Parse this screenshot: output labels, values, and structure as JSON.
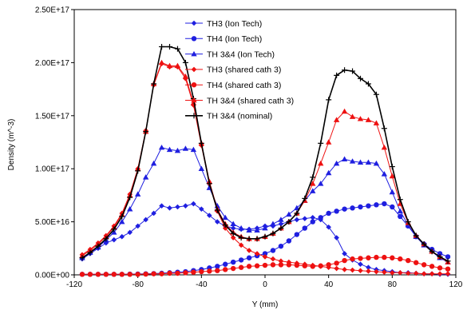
{
  "chart_data": {
    "type": "line",
    "title": "",
    "xlabel": "Y (mm)",
    "ylabel": "Density (m^-3)",
    "xlim": [
      -120,
      120
    ],
    "ylim": [
      0,
      2.5e+17
    ],
    "x_ticks": [
      -120,
      -80,
      -40,
      0,
      40,
      80,
      120
    ],
    "x_tick_labels": [
      "-120",
      "-80",
      "-40",
      "0",
      "40",
      "80",
      "120"
    ],
    "y_ticks": [
      0,
      5e+16,
      1e+17,
      1.5e+17,
      2e+17,
      2.5e+17
    ],
    "y_tick_labels": [
      "0.00E+00",
      "5.00E+16",
      "1.00E+17",
      "1.50E+17",
      "2.00E+17",
      "2.50E+17"
    ],
    "grid": false,
    "legend_position": "top-center",
    "x": [
      -115,
      -110,
      -105,
      -100,
      -95,
      -90,
      -85,
      -80,
      -75,
      -70,
      -65,
      -60,
      -55,
      -50,
      -45,
      -40,
      -35,
      -30,
      -25,
      -20,
      -15,
      -10,
      -5,
      0,
      5,
      10,
      15,
      20,
      25,
      30,
      35,
      40,
      45,
      50,
      55,
      60,
      65,
      70,
      75,
      80,
      85,
      90,
      95,
      100,
      105,
      110,
      115
    ],
    "series": [
      {
        "name": "TH3 (Ion Tech)",
        "color": "#1f1fe0",
        "marker": "diamond",
        "values": [
          1.5e+16,
          2e+16,
          2.5e+16,
          3e+16,
          3.3e+16,
          3.6e+16,
          4e+16,
          4.6e+16,
          5.2e+16,
          5.8e+16,
          6.5e+16,
          6.3e+16,
          6.4e+16,
          6.5e+16,
          6.7e+16,
          6.2e+16,
          5.6e+16,
          5e+16,
          4.6e+16,
          4.4e+16,
          4.3e+16,
          4.3e+16,
          4.4e+16,
          4.6e+16,
          4.6e+16,
          4.8e+16,
          5e+16,
          5.2e+16,
          5.3e+16,
          5.4e+16,
          5.2e+16,
          4.5e+16,
          3.5e+16,
          2e+16,
          1.4e+16,
          1e+16,
          7000000000000000.0,
          5000000000000000.0,
          4000000000000000.0,
          3000000000000000.0,
          2000000000000000.0,
          2000000000000000.0,
          1500000000000000.0,
          1000000000000000.0,
          1000000000000000.0,
          500000000000000.0,
          500000000000000.0
        ]
      },
      {
        "name": "TH4 (Ion Tech)",
        "color": "#1f1fe0",
        "marker": "circle",
        "values": [
          500000000000000.0,
          500000000000000.0,
          500000000000000.0,
          500000000000000.0,
          500000000000000.0,
          500000000000000.0,
          700000000000000.0,
          800000000000000.0,
          1000000000000000.0,
          1200000000000000.0,
          1500000000000000.0,
          2000000000000000.0,
          2500000000000000.0,
          3000000000000000.0,
          4000000000000000.0,
          5000000000000000.0,
          6500000000000000.0,
          8000000000000000.0,
          1e+16,
          1.2e+16,
          1.4e+16,
          1.6e+16,
          1.8e+16,
          2e+16,
          2.3e+16,
          2.7e+16,
          3.2e+16,
          3.8e+16,
          4.4e+16,
          5e+16,
          5.4e+16,
          5.8e+16,
          6e+16,
          6.2e+16,
          6.3e+16,
          6.4e+16,
          6.5e+16,
          6.6e+16,
          6.7e+16,
          6.4e+16,
          5.5e+16,
          4.6e+16,
          3.6e+16,
          2.9e+16,
          2.4e+16,
          2e+16,
          1.7e+16
        ]
      },
      {
        "name": "TH 3&4 (Ion Tech)",
        "color": "#1f1fe0",
        "marker": "triangle",
        "values": [
          1.6e+16,
          2.1e+16,
          2.6e+16,
          3.3e+16,
          4e+16,
          5e+16,
          6.2e+16,
          7.6e+16,
          9.2e+16,
          1.05e+17,
          1.2e+17,
          1.18e+17,
          1.17e+17,
          1.19e+17,
          1.18e+17,
          1e+17,
          8.2e+16,
          6.5e+16,
          5.4e+16,
          4.8e+16,
          4.4e+16,
          4.2e+16,
          4.2e+16,
          4.4e+16,
          4.8e+16,
          5.2e+16,
          5.7e+16,
          6.3e+16,
          7e+16,
          7.9e+16,
          8.6e+16,
          9.6e+16,
          1.05e+17,
          1.09e+17,
          1.07e+17,
          1.06e+17,
          1.06e+17,
          1.05e+17,
          9.5e+16,
          7.8e+16,
          6e+16,
          4.7e+16,
          3.6e+16,
          2.8e+16,
          2.2e+16,
          1.6e+16,
          1.2e+16
        ]
      },
      {
        "name": "TH3 (shared cath 3)",
        "color": "#ee1111",
        "marker": "diamond",
        "values": [
          1.9e+16,
          2.4e+16,
          3e+16,
          3.7e+16,
          4.6e+16,
          5.8e+16,
          7.6e+16,
          1e+17,
          1.36e+17,
          1.79e+17,
          1.99e+17,
          1.96e+17,
          1.96e+17,
          1.85e+17,
          1.6e+17,
          1.22e+17,
          8.6e+16,
          6e+16,
          4.4e+16,
          3.5e+16,
          2.8e+16,
          2.3e+16,
          2e+16,
          1.7e+16,
          1.5e+16,
          1.3e+16,
          1.2e+16,
          1.1e+16,
          1e+16,
          9000000000000000.0,
          8000000000000000.0,
          7000000000000000.0,
          6000000000000000.0,
          5000000000000000.0,
          4500000000000000.0,
          4000000000000000.0,
          3500000000000000.0,
          3000000000000000.0,
          2500000000000000.0,
          2000000000000000.0,
          2000000000000000.0,
          1500000000000000.0,
          1500000000000000.0,
          1000000000000000.0,
          1000000000000000.0,
          1000000000000000.0,
          1000000000000000.0
        ]
      },
      {
        "name": "TH4 (shared cath 3)",
        "color": "#ee1111",
        "marker": "circle",
        "values": [
          500000000000000.0,
          500000000000000.0,
          500000000000000.0,
          500000000000000.0,
          500000000000000.0,
          500000000000000.0,
          500000000000000.0,
          500000000000000.0,
          700000000000000.0,
          1000000000000000.0,
          1000000000000000.0,
          1500000000000000.0,
          1500000000000000.0,
          2000000000000000.0,
          2500000000000000.0,
          3000000000000000.0,
          3500000000000000.0,
          4000000000000000.0,
          5000000000000000.0,
          6000000000000000.0,
          7000000000000000.0,
          8000000000000000.0,
          8500000000000000.0,
          9000000000000000.0,
          9500000000000000.0,
          9500000000000000.0,
          9500000000000000.0,
          9000000000000000.0,
          8500000000000000.0,
          8000000000000000.0,
          8500000000000000.0,
          9500000000000000.0,
          1.1e+16,
          1.35e+16,
          1.5e+16,
          1.55e+16,
          1.6e+16,
          1.65e+16,
          1.65e+16,
          1.6e+16,
          1.5e+16,
          1.35e+16,
          1.15e+16,
          9500000000000000.0,
          8000000000000000.0,
          6500000000000000.0,
          5500000000000000.0
        ]
      },
      {
        "name": "TH 3&4 (shared cath 3)",
        "color": "#ee1111",
        "marker": "triangle",
        "values": [
          1.8e+16,
          2.3e+16,
          2.9e+16,
          3.6e+16,
          4.5e+16,
          5.7e+16,
          7.5e+16,
          1e+17,
          1.35e+17,
          1.8e+17,
          2e+17,
          1.97e+17,
          1.97e+17,
          1.87e+17,
          1.62e+17,
          1.24e+17,
          8.8e+16,
          6.2e+16,
          4.8e+16,
          4e+16,
          3.6e+16,
          3.4e+16,
          3.4e+16,
          3.6e+16,
          3.9e+16,
          4.4e+16,
          5e+16,
          5.8e+16,
          7e+16,
          8.6e+16,
          1.05e+17,
          1.25e+17,
          1.46e+17,
          1.54e+17,
          1.49e+17,
          1.47e+17,
          1.46e+17,
          1.43e+17,
          1.2e+17,
          9.3e+16,
          6.7e+16,
          4.9e+16,
          3.7e+16,
          2.9e+16,
          2.2e+16,
          1.7e+16,
          1.2e+16
        ]
      },
      {
        "name": "TH 3&4 (nominal)",
        "color": "#000000",
        "marker": "plus",
        "values": [
          1.6e+16,
          2.1e+16,
          2.7e+16,
          3.4e+16,
          4.3e+16,
          5.5e+16,
          7.3e+16,
          9.8e+16,
          1.35e+17,
          1.8e+17,
          2.15e+17,
          2.15e+17,
          2.13e+17,
          2e+17,
          1.66e+17,
          1.24e+17,
          8.6e+16,
          6.1e+16,
          4.7e+16,
          3.9e+16,
          3.5e+16,
          3.4e+16,
          3.4e+16,
          3.6e+16,
          3.9e+16,
          4.4e+16,
          5e+16,
          5.8e+16,
          7.2e+16,
          9.2e+16,
          1.24e+17,
          1.65e+17,
          1.88e+17,
          1.93e+17,
          1.92e+17,
          1.85e+17,
          1.8e+17,
          1.7e+17,
          1.38e+17,
          1.02e+17,
          7.1e+16,
          5e+16,
          3.7e+16,
          2.9e+16,
          2.2e+16,
          1.7e+16,
          1.3e+16
        ]
      }
    ]
  }
}
